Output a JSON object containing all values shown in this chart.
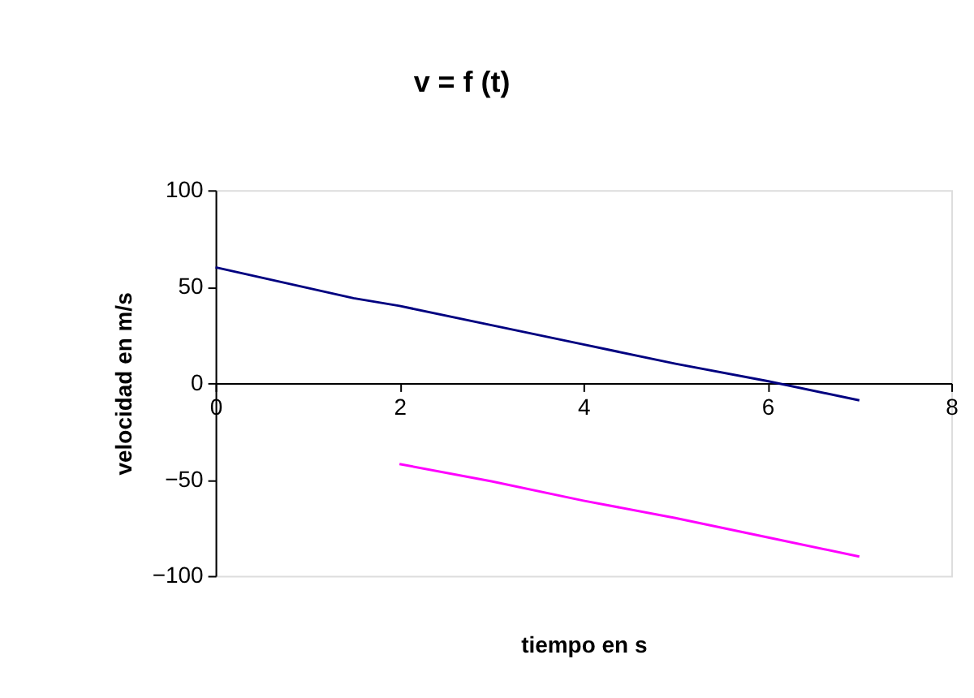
{
  "chart_data": {
    "type": "line",
    "title": "v = f (t)",
    "xlabel": "tiempo en s",
    "ylabel": "velocidad en m/s",
    "xlim": [
      0,
      8
    ],
    "xticks": [
      0,
      2,
      4,
      6,
      8
    ],
    "ylim": [
      -100,
      100
    ],
    "yticks": [
      -100,
      -50,
      0,
      50,
      100
    ],
    "grid": false,
    "legend": false,
    "marker": "none",
    "line_style": "solid",
    "series": [
      {
        "color": "#000080",
        "x": [
          0,
          1.5,
          2,
          3,
          4,
          5,
          6,
          7
        ],
        "values": [
          60,
          44,
          40,
          30,
          20,
          10,
          1,
          -9
        ]
      },
      {
        "color": "#ff00ff",
        "x": [
          2,
          3,
          4,
          5,
          6,
          7
        ],
        "values": [
          -42,
          -51,
          -61,
          -70,
          -80,
          -90
        ]
      }
    ]
  }
}
